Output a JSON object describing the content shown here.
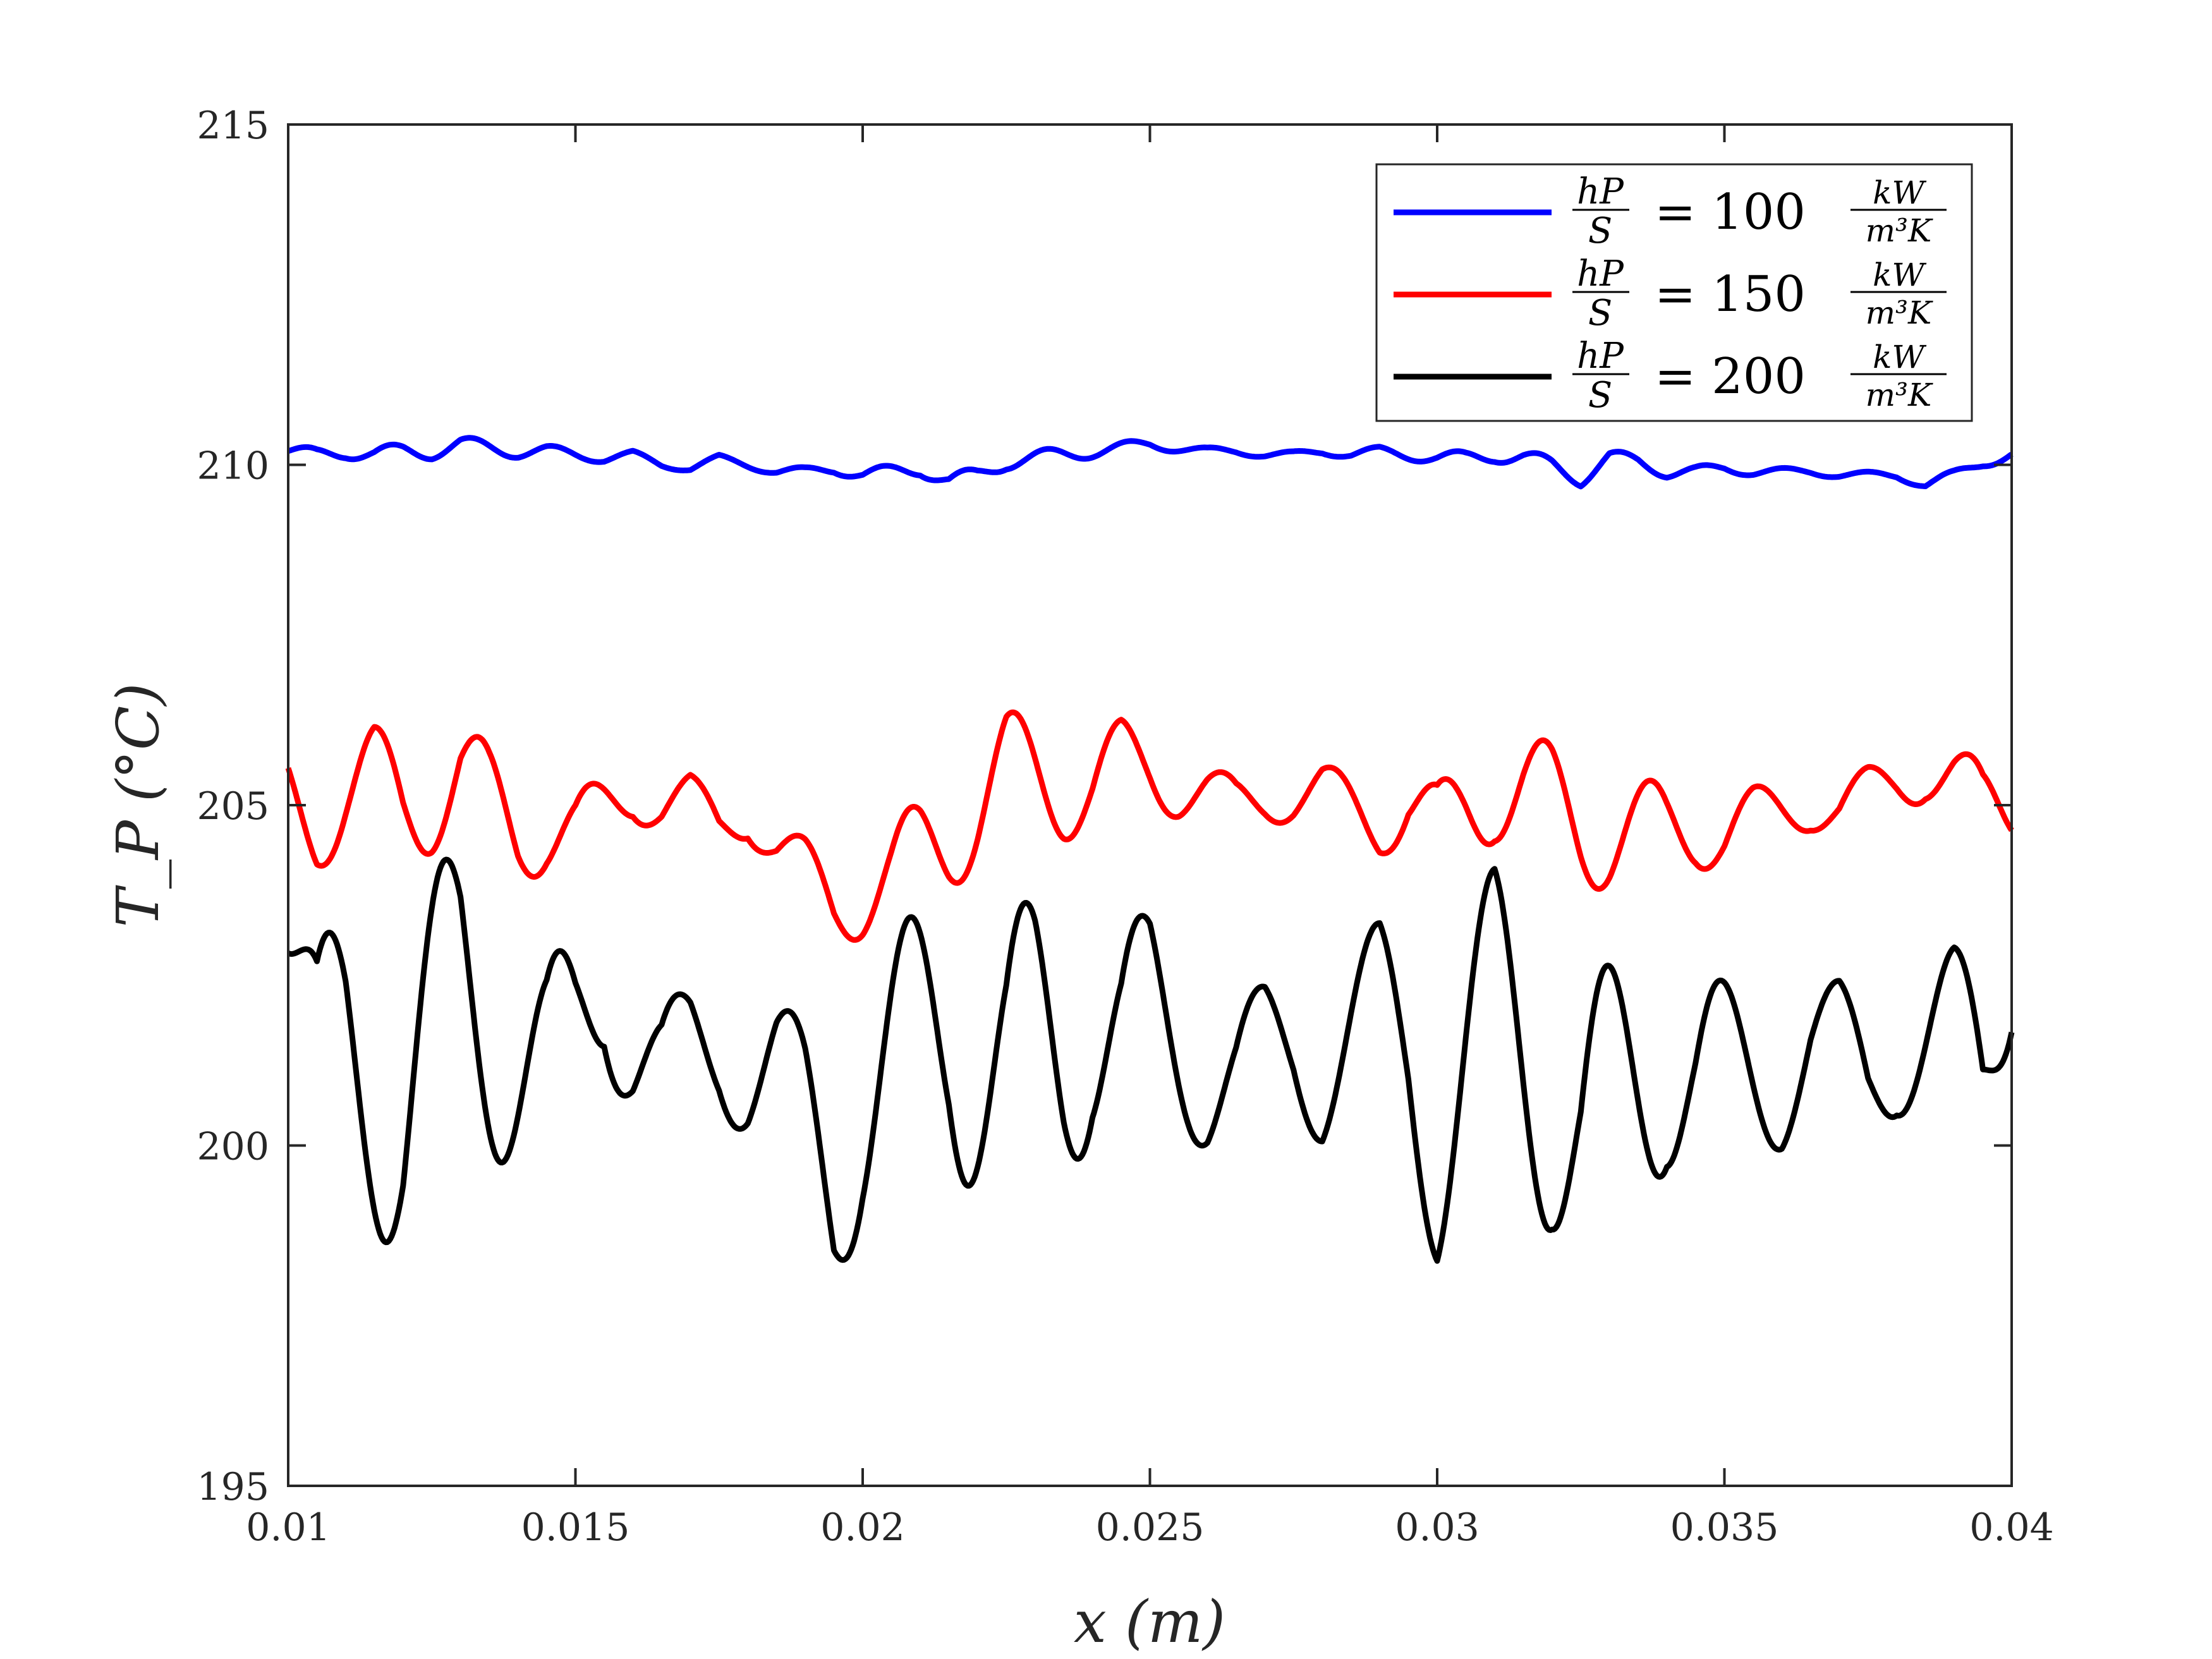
{
  "chart_data": {
    "type": "line",
    "xlabel": "x (m)",
    "ylabel": "T_P (°C)",
    "xlim": [
      0.01,
      0.04
    ],
    "ylim": [
      195,
      215
    ],
    "x_ticks": [
      0.01,
      0.015,
      0.02,
      0.025,
      0.03,
      0.035,
      0.04
    ],
    "x_tick_labels": [
      "0.01",
      "0.015",
      "0.02",
      "0.025",
      "0.03",
      "0.035",
      "0.04"
    ],
    "y_ticks": [
      195,
      200,
      205,
      210,
      215
    ],
    "y_tick_labels": [
      "195",
      "200",
      "205",
      "210",
      "215"
    ],
    "grid": false,
    "legend_position": "top-right",
    "series": [
      {
        "name": "hP/S = 100 kW/(m³K)",
        "legend_value": "100",
        "color": "#0000ff",
        "x": [
          0.01,
          0.0105,
          0.011,
          0.0115,
          0.012,
          0.0125,
          0.013,
          0.0135,
          0.014,
          0.0145,
          0.015,
          0.0155,
          0.016,
          0.0165,
          0.017,
          0.0175,
          0.018,
          0.0185,
          0.019,
          0.0195,
          0.02,
          0.0205,
          0.021,
          0.0215,
          0.022,
          0.0225,
          0.023,
          0.0235,
          0.024,
          0.0245,
          0.025,
          0.0255,
          0.026,
          0.0265,
          0.027,
          0.0275,
          0.028,
          0.0285,
          0.029,
          0.0295,
          0.03,
          0.0305,
          0.031,
          0.0315,
          0.032,
          0.0325,
          0.033,
          0.0335,
          0.034,
          0.0345,
          0.035,
          0.0355,
          0.036,
          0.0365,
          0.037,
          0.0375,
          0.038,
          0.0385,
          0.039,
          0.0395,
          0.04
        ],
        "y": [
          210.2,
          210.15,
          210.2,
          210.15,
          210.2,
          210.2,
          210.3,
          210.25,
          210.2,
          210.2,
          210.15,
          210.1,
          210.15,
          210.0,
          209.95,
          210.1,
          210.0,
          209.9,
          209.9,
          209.95,
          209.85,
          209.9,
          209.95,
          209.75,
          209.85,
          210.05,
          210.1,
          210.15,
          210.2,
          210.25,
          210.3,
          210.25,
          210.2,
          210.2,
          210.15,
          210.15,
          210.2,
          210.15,
          210.2,
          210.15,
          210.1,
          210.1,
          210.15,
          210.1,
          210.0,
          209.8,
          210.1,
          210.05,
          209.9,
          209.9,
          209.95,
          209.9,
          209.9,
          209.9,
          209.85,
          209.85,
          209.85,
          209.7,
          209.85,
          210.05,
          210.15
        ]
      },
      {
        "name": "hP/S = 150 kW/(m³K)",
        "legend_value": "150",
        "color": "#ff0000",
        "x": [
          0.01,
          0.0105,
          0.011,
          0.0115,
          0.012,
          0.0125,
          0.013,
          0.0135,
          0.014,
          0.0145,
          0.015,
          0.0155,
          0.016,
          0.0165,
          0.017,
          0.0175,
          0.018,
          0.0185,
          0.019,
          0.0195,
          0.02,
          0.0205,
          0.021,
          0.0215,
          0.022,
          0.0225,
          0.023,
          0.0235,
          0.024,
          0.0245,
          0.025,
          0.0255,
          0.026,
          0.0265,
          0.027,
          0.0275,
          0.028,
          0.0285,
          0.029,
          0.0295,
          0.03,
          0.0305,
          0.031,
          0.0315,
          0.032,
          0.0325,
          0.033,
          0.0335,
          0.034,
          0.0345,
          0.035,
          0.0355,
          0.036,
          0.0365,
          0.037,
          0.0375,
          0.038,
          0.0385,
          0.039,
          0.0395,
          0.04
        ],
        "y": [
          205.2,
          204.8,
          205.1,
          205.3,
          205.0,
          205.2,
          205.5,
          205.0,
          204.6,
          204.7,
          204.6,
          204.9,
          205.2,
          205.0,
          205.1,
          204.7,
          204.9,
          204.3,
          204.0,
          203.6,
          203.7,
          203.9,
          204.3,
          204.6,
          205.0,
          205.5,
          205.4,
          205.3,
          205.3,
          205.6,
          205.5,
          205.3,
          205.2,
          205.0,
          205.1,
          205.1,
          205.2,
          205.0,
          204.8,
          205.0,
          204.6,
          205.0,
          205.3,
          205.2,
          205.0,
          204.7,
          204.6,
          204.6,
          204.6,
          204.7,
          204.6,
          204.8,
          204.9,
          205.0,
          204.9,
          205.2,
          205.4,
          205.5,
          205.3,
          205.0,
          205.2
        ]
      },
      {
        "name": "hP/S = 200 kW/(m³K)",
        "legend_value": "200",
        "color": "#000000",
        "x": [
          0.01,
          0.0105,
          0.011,
          0.0115,
          0.012,
          0.0125,
          0.013,
          0.0135,
          0.014,
          0.0145,
          0.015,
          0.0155,
          0.016,
          0.0165,
          0.017,
          0.0175,
          0.018,
          0.0185,
          0.019,
          0.0195,
          0.02,
          0.0205,
          0.021,
          0.0215,
          0.022,
          0.0225,
          0.023,
          0.0235,
          0.024,
          0.0245,
          0.025,
          0.0255,
          0.026,
          0.0265,
          0.027,
          0.0275,
          0.028,
          0.0285,
          0.029,
          0.0295,
          0.03,
          0.0305,
          0.031,
          0.0315,
          0.032,
          0.0325,
          0.033,
          0.0335,
          0.034,
          0.0345,
          0.035,
          0.0355,
          0.036,
          0.0365,
          0.037,
          0.0375,
          0.038,
          0.0385,
          0.039,
          0.0395,
          0.04
        ],
        "y": [
          203.5,
          201.0,
          201.5,
          201.0,
          200.5,
          201.5,
          202.5,
          202.0,
          201.5,
          201.0,
          201.5,
          202.5,
          201.5,
          201.0,
          201.5,
          201.5,
          201.0,
          201.0,
          200.5,
          199.5,
          200.5,
          201.0,
          201.5,
          202.0,
          201.5,
          201.0,
          201.5,
          201.5,
          202.0,
          201.5,
          202.0,
          201.5,
          201.0,
          201.0,
          201.5,
          201.5,
          201.0,
          201.5,
          202.0,
          201.5,
          200.0,
          201.0,
          202.0,
          201.5,
          201.0,
          200.0,
          200.5,
          201.0,
          201.5,
          201.0,
          201.0,
          201.0,
          201.0,
          201.5,
          201.5,
          201.0,
          201.5,
          201.5,
          201.5,
          201.0,
          203.5
        ]
      }
    ]
  }
}
